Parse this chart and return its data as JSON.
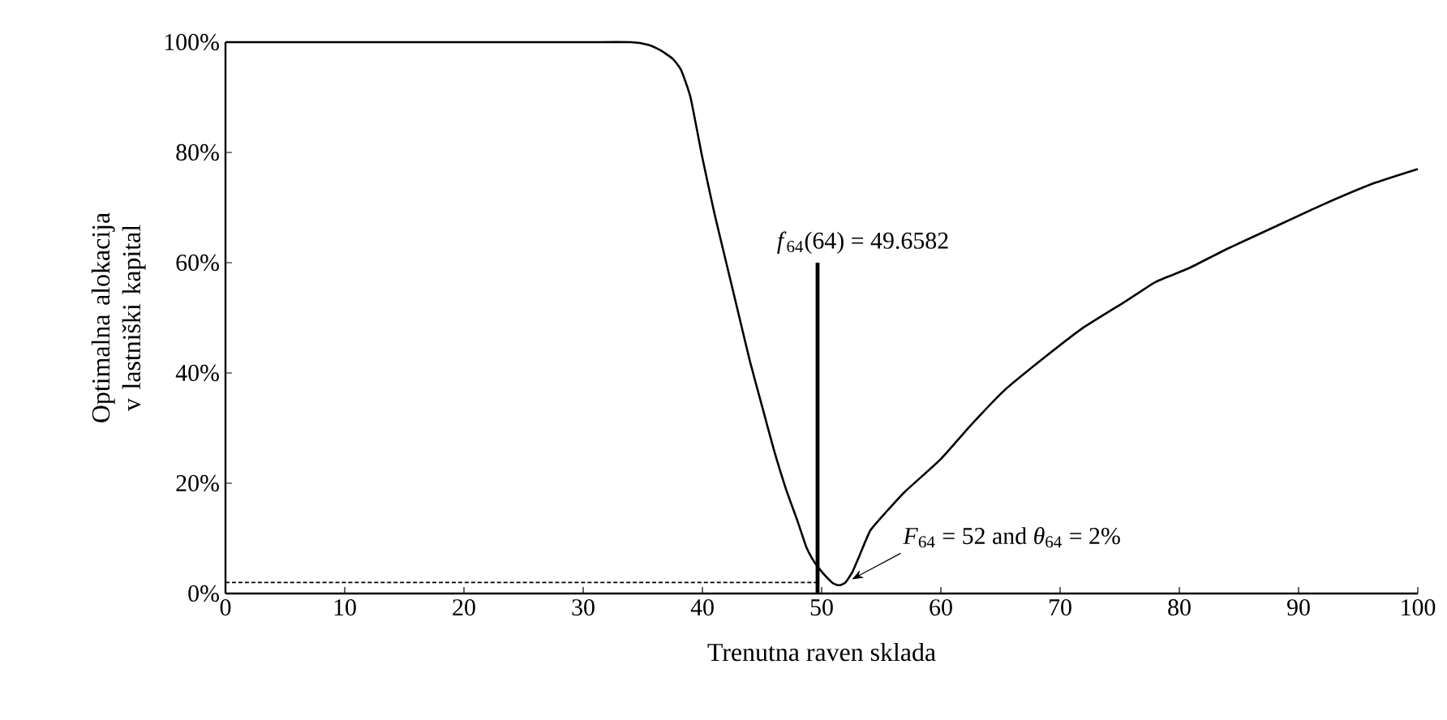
{
  "chart_data": {
    "type": "line",
    "xlabel": "Trenutna raven sklada",
    "ylabel": "Optimalna alokacija v lastniški kapital",
    "xlim": [
      0,
      100
    ],
    "xticks": [
      0,
      10,
      20,
      30,
      40,
      50,
      60,
      70,
      80,
      90,
      100
    ],
    "ylim": [
      0,
      100
    ],
    "yticks": [
      {
        "value": 0,
        "label": "0%"
      },
      {
        "value": 20,
        "label": "20%"
      },
      {
        "value": 40,
        "label": "40%"
      },
      {
        "value": 60,
        "label": "60%"
      },
      {
        "value": 80,
        "label": "80%"
      },
      {
        "value": 100,
        "label": "100%"
      }
    ],
    "grid": false,
    "marker": "none",
    "series": [
      {
        "color": "#000000",
        "line_style": "solid",
        "x": [
          0,
          10,
          20,
          30,
          34,
          35.5,
          36.5,
          37.5,
          38.2,
          39,
          40,
          41,
          42,
          43,
          44,
          45,
          46,
          47,
          48,
          48.7,
          49.3,
          49.8,
          50.4,
          51,
          51.5,
          52,
          52.6,
          53.2,
          54.1,
          55.5,
          57,
          60,
          62.5,
          65.4,
          68.5,
          71.8,
          75.5,
          78,
          80.8,
          84,
          88,
          92,
          96.3,
          100
        ],
        "values": [
          100,
          100,
          100,
          100,
          100,
          99.5,
          98.5,
          97,
          95,
          90,
          79,
          69,
          60,
          51,
          42,
          34,
          26,
          19,
          13,
          8.5,
          6,
          4.5,
          3,
          1.8,
          1.5,
          2,
          4,
          7,
          11.5,
          15,
          18.5,
          24.4,
          30.5,
          37,
          42.5,
          48,
          53,
          56.5,
          59,
          62.5,
          66.5,
          70.5,
          74.4,
          77
        ]
      },
      {
        "type": "line",
        "color": "#000000",
        "line_style": "solid",
        "x": [
          49.6582,
          49.6582
        ],
        "values": [
          0,
          60
        ]
      },
      {
        "type": "line",
        "color": "#000000",
        "line_style": "dashed",
        "x": [
          0,
          49.6582
        ],
        "values": [
          2,
          2
        ]
      }
    ],
    "annotations": [
      {
        "text": "*f*$_{64}$(64) = 49.6582",
        "x": 49.6582,
        "y": 60
      },
      {
        "text": "*F*$_{64}$ = 52 and  *θ*$_{64}$ = 2%",
        "x": 52,
        "y": 2
      }
    ]
  }
}
